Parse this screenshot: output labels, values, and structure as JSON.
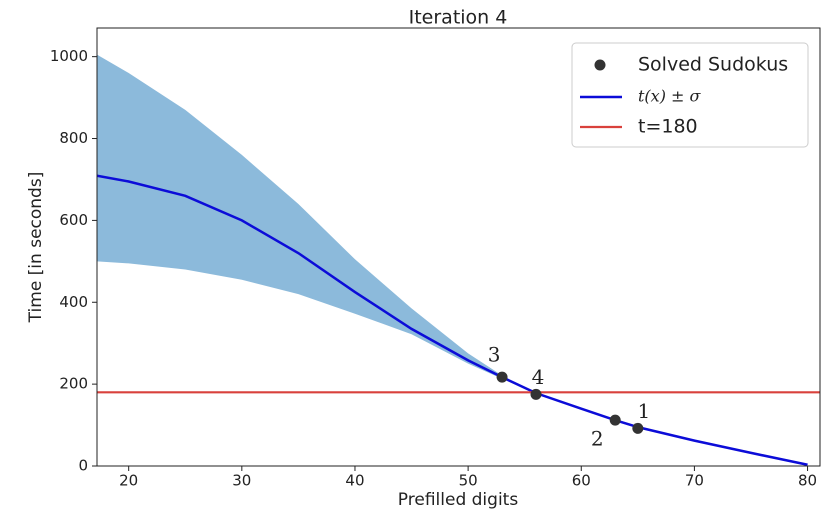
{
  "chart_data": {
    "type": "line",
    "title": "Iteration 4",
    "x_label": "Prefilled digits",
    "y_label": "Time [in seconds]",
    "xlim": [
      17.2,
      81.1
    ],
    "ylim": [
      0,
      1070
    ],
    "xticks": [
      20,
      30,
      40,
      50,
      60,
      70,
      80
    ],
    "yticks": [
      0,
      200,
      400,
      600,
      800,
      1000
    ],
    "legend_position": "upper right",
    "x": [
      17.2,
      20,
      25,
      30,
      35,
      40,
      45,
      50,
      53,
      56,
      60,
      63,
      65,
      70,
      75,
      80
    ],
    "series": [
      {
        "name": "t(x) ± σ",
        "color": "#0c0cd8",
        "band_color": "#8cbadb",
        "values": [
          709,
          695,
          660,
          600,
          520,
          425,
          335,
          258,
          217,
          178,
          140,
          112,
          95,
          62,
          32,
          3
        ],
        "upper": [
          1005,
          960,
          870,
          760,
          640,
          505,
          385,
          275,
          221,
          178,
          140,
          112,
          95,
          62,
          32,
          3
        ],
        "lower": [
          500,
          495,
          480,
          455,
          420,
          372,
          322,
          250,
          213,
          178,
          140,
          112,
          95,
          62,
          32,
          3
        ]
      }
    ],
    "points": {
      "name": "Solved Sudokus",
      "color": "#333333",
      "x": [
        53,
        56,
        63,
        65
      ],
      "values": [
        217,
        175,
        112,
        92
      ],
      "labels": [
        "3",
        "4",
        "2",
        "1"
      ]
    },
    "threshold": {
      "name": "t=180",
      "value": 180,
      "color": "#d9413c"
    }
  }
}
